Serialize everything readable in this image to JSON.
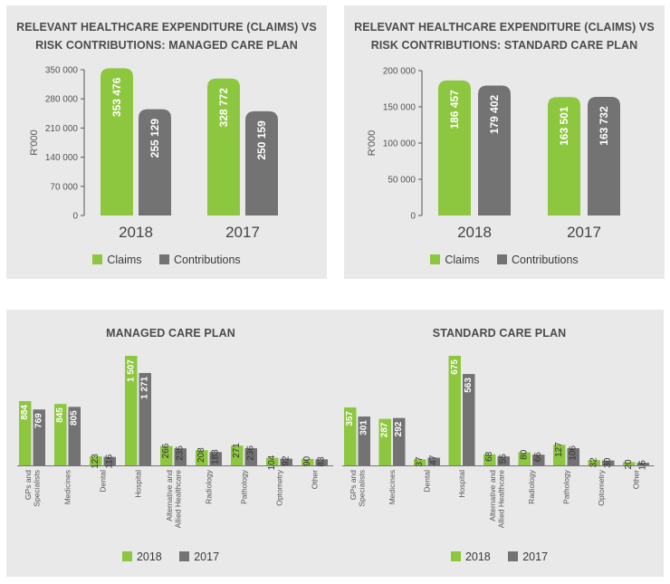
{
  "colors": {
    "claims": "#8dc63f",
    "contributions": "#737373"
  },
  "chart_data": [
    {
      "type": "bar",
      "title": "RELEVANT HEALTHCARE EXPENDITURE (CLAIMS) VS RISK CONTRIBUTIONS: MANAGED CARE PLAN",
      "title_lines": [
        "RELEVANT HEALTHCARE EXPENDITURE (CLAIMS) VS",
        "RISK CONTRIBUTIONS: MANAGED CARE PLAN"
      ],
      "categories": [
        "2018",
        "2017"
      ],
      "ylabel": "R'000",
      "ylim": [
        0,
        350000
      ],
      "yticks": [
        "0",
        "70 000",
        "140 000",
        "210 000",
        "280 000",
        "350 000"
      ],
      "series": [
        {
          "name": "Claims",
          "values": [
            353476,
            328772
          ],
          "labels": [
            "353 476",
            "328 772"
          ]
        },
        {
          "name": "Contributions",
          "values": [
            255129,
            250159
          ],
          "labels": [
            "255 129",
            "250 159"
          ]
        }
      ],
      "legend": "bottom"
    },
    {
      "type": "bar",
      "title": "RELEVANT HEALTHCARE EXPENDITURE (CLAIMS) VS RISK CONTRIBUTIONS: STANDARD CARE PLAN",
      "title_lines": [
        "RELEVANT HEALTHCARE EXPENDITURE (CLAIMS) VS",
        "RISK CONTRIBUTIONS: STANDARD CARE PLAN"
      ],
      "categories": [
        "2018",
        "2017"
      ],
      "ylabel": "R'000",
      "ylim": [
        0,
        200000
      ],
      "yticks": [
        "0",
        "50 000",
        "100 000",
        "150 000",
        "200 000"
      ],
      "series": [
        {
          "name": "Claims",
          "values": [
            186457,
            163501
          ],
          "labels": [
            "186 457",
            "163 501"
          ]
        },
        {
          "name": "Contributions",
          "values": [
            179402,
            163732
          ],
          "labels": [
            "179 402",
            "163 732"
          ]
        }
      ],
      "legend": "bottom"
    },
    {
      "type": "bar",
      "title": "MANAGED CARE PLAN",
      "categories": [
        "GPs and Specialists",
        "Medicines",
        "Dental",
        "Hospital",
        "Alternative and Allied Healthcare",
        "Radiology",
        "Pathology",
        "Optometry",
        "Other"
      ],
      "category_lines": [
        [
          "GPs and",
          "Specialists"
        ],
        [
          "Medicines"
        ],
        [
          "Dental"
        ],
        [
          "Hospital"
        ],
        [
          "Alternative and",
          "Allied Healthcare"
        ],
        [
          "Radiology"
        ],
        [
          "Pathology"
        ],
        [
          "Optometry"
        ],
        [
          "Other"
        ]
      ],
      "ylim": [
        0,
        1507
      ],
      "series": [
        {
          "name": "2018",
          "values": [
            884,
            845,
            123,
            1507,
            266,
            208,
            271,
            104,
            90
          ],
          "labels": [
            "884",
            "845",
            "123",
            "1 507",
            "266",
            "208",
            "271",
            "104",
            "90"
          ]
        },
        {
          "name": "2017",
          "values": [
            769,
            805,
            116,
            1271,
            235,
            183,
            236,
            92,
            83
          ],
          "labels": [
            "769",
            "805",
            "116",
            "1 271",
            "235",
            "183",
            "236",
            "92",
            "83"
          ]
        }
      ],
      "legend": "bottom"
    },
    {
      "type": "bar",
      "title": "STANDARD CARE PLAN",
      "categories": [
        "GPs and Specialists",
        "Medicines",
        "Dental",
        "Hospital",
        "Alternative and Allied Healthcare",
        "Radiology",
        "Pathology",
        "Optometry",
        "Other"
      ],
      "category_lines": [
        [
          "GPs and",
          "Specialists"
        ],
        [
          "Medicines"
        ],
        [
          "Dental"
        ],
        [
          "Hospital"
        ],
        [
          "Alternative and",
          "Allied Healthcare"
        ],
        [
          "Radiology"
        ],
        [
          "Pathology"
        ],
        [
          "Optometry"
        ],
        [
          "Other"
        ]
      ],
      "ylim": [
        0,
        675
      ],
      "series": [
        {
          "name": "2018",
          "values": [
            357,
            287,
            37,
            675,
            68,
            80,
            127,
            32,
            20
          ],
          "labels": [
            "357",
            "287",
            "37",
            "675",
            "68",
            "80",
            "127",
            "32",
            "20"
          ]
        },
        {
          "name": "2017",
          "values": [
            301,
            292,
            47,
            563,
            55,
            66,
            106,
            30,
            16
          ],
          "labels": [
            "301",
            "292",
            "47",
            "563",
            "55",
            "66",
            "106",
            "30",
            "16"
          ]
        }
      ],
      "legend": "bottom"
    }
  ]
}
